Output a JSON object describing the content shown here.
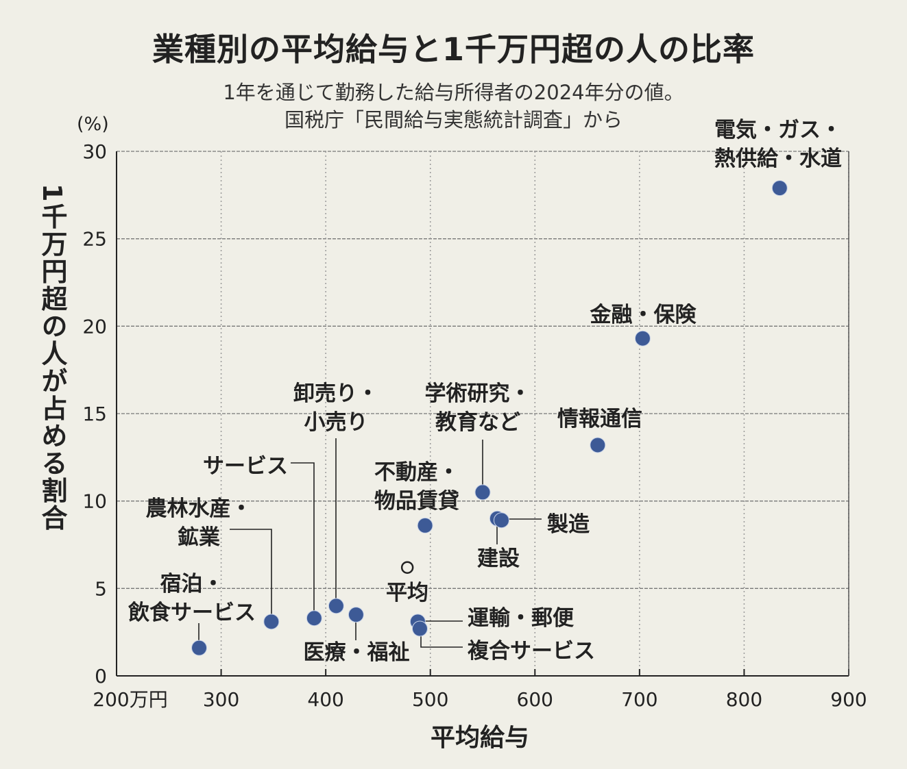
{
  "chart_data": {
    "type": "scatter",
    "title": "業種別の平均給与と1千万円超の人の比率",
    "subtitle": [
      "1年を通じて勤務した給与所得者の2024年分の値。",
      "国税庁「民間給与実態統計調査」から"
    ],
    "xlabel": "平均給与",
    "ylabel": "1千万円超の人が占める割合",
    "y_unit": "(%)",
    "xlim": [
      200,
      900
    ],
    "ylim": [
      0,
      30
    ],
    "x_ticks": [
      200,
      300,
      400,
      500,
      600,
      700,
      800,
      900
    ],
    "x_tick_labels": [
      "200万円",
      "300",
      "400",
      "500",
      "600",
      "700",
      "800",
      "900"
    ],
    "y_ticks": [
      0,
      5,
      10,
      15,
      20,
      25,
      30
    ],
    "y_tick_labels": [
      "0",
      "5",
      "10",
      "15",
      "20",
      "25",
      "30"
    ],
    "grid": true,
    "point_color": "#3d5a96",
    "points": [
      {
        "label": [
          "電気・ガス・",
          "熱供給・水道"
        ],
        "x": 834,
        "y": 27.9
      },
      {
        "label": [
          "金融・保険"
        ],
        "x": 703,
        "y": 19.3
      },
      {
        "label": [
          "情報通信"
        ],
        "x": 660,
        "y": 13.2
      },
      {
        "label": [
          "学術研究・",
          "教育など"
        ],
        "x": 550,
        "y": 10.5
      },
      {
        "label": [
          "建設"
        ],
        "x": 564,
        "y": 9.0
      },
      {
        "label": [
          "製造"
        ],
        "x": 568,
        "y": 8.9
      },
      {
        "label": [
          "不動産・",
          "物品賃貸"
        ],
        "x": 495,
        "y": 8.6
      },
      {
        "label": [
          "平均"
        ],
        "x": 478,
        "y": 6.2,
        "average": true
      },
      {
        "label": [
          "卸売り・",
          "小売り"
        ],
        "x": 410,
        "y": 4.0
      },
      {
        "label": [
          "医療・福祉"
        ],
        "x": 429,
        "y": 3.5
      },
      {
        "label": [
          "サービス"
        ],
        "x": 389,
        "y": 3.3
      },
      {
        "label": [
          "農林水産・",
          "鉱業"
        ],
        "x": 348,
        "y": 3.1
      },
      {
        "label": [
          "宿泊・",
          "飲食サービス"
        ],
        "x": 279,
        "y": 1.6
      },
      {
        "label": [
          "運輸・郵便"
        ],
        "x": 488,
        "y": 3.1
      },
      {
        "label": [
          "複合サービス"
        ],
        "x": 490,
        "y": 2.7
      }
    ]
  }
}
